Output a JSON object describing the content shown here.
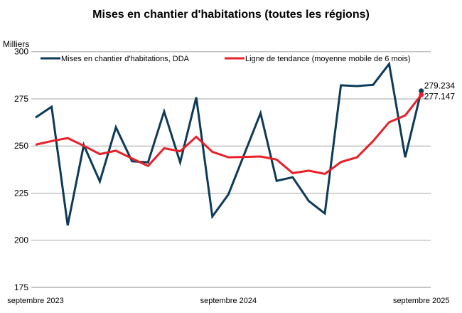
{
  "chart_data": {
    "type": "line",
    "title": "Mises en chantier d'habitations (toutes les régions)",
    "ylabel": "Milliers",
    "xlabel": "",
    "ylim": [
      175,
      300
    ],
    "yticks": [
      175,
      200,
      225,
      250,
      275,
      300
    ],
    "grid": true,
    "legend": "top",
    "x": [
      "2023-09",
      "2023-10",
      "2023-11",
      "2023-12",
      "2024-01",
      "2024-02",
      "2024-03",
      "2024-04",
      "2024-05",
      "2024-06",
      "2024-07",
      "2024-08",
      "2024-09",
      "2024-10",
      "2024-11",
      "2024-12",
      "2025-01",
      "2025-02",
      "2025-03",
      "2025-04",
      "2025-05",
      "2025-06",
      "2025-07",
      "2025-08",
      "2025-09"
    ],
    "xtick_labels": [
      {
        "index": 0,
        "label": "septembre 2023"
      },
      {
        "index": 12,
        "label": "septembre 2024"
      },
      {
        "index": 24,
        "label": "septembre 2025"
      }
    ],
    "series": [
      {
        "name": "Mises en chantier d'habitations, DDA",
        "color": "#0d3b57",
        "values": [
          265.1,
          270.8,
          207.9,
          250.5,
          231.2,
          259.9,
          241.9,
          241.3,
          268.3,
          241.3,
          275.8,
          212.6,
          224.3,
          245.9,
          267.4,
          231.5,
          233.4,
          220.8,
          214.2,
          282.2,
          281.8,
          282.4,
          293.5,
          244.0,
          279.234
        ],
        "end_label": "279.234"
      },
      {
        "name": "Ligne de tendance (moyenne mobile de 6 mois)",
        "color": "#e8202a",
        "values": [
          250.7,
          252.6,
          254.2,
          250.1,
          245.7,
          247.5,
          243.4,
          239.4,
          248.8,
          247.2,
          254.9,
          246.9,
          244.0,
          244.2,
          244.4,
          242.8,
          235.6,
          236.9,
          235.2,
          241.5,
          244.0,
          252.6,
          262.6,
          266.2,
          277.147
        ],
        "end_label": "277.147"
      }
    ]
  }
}
